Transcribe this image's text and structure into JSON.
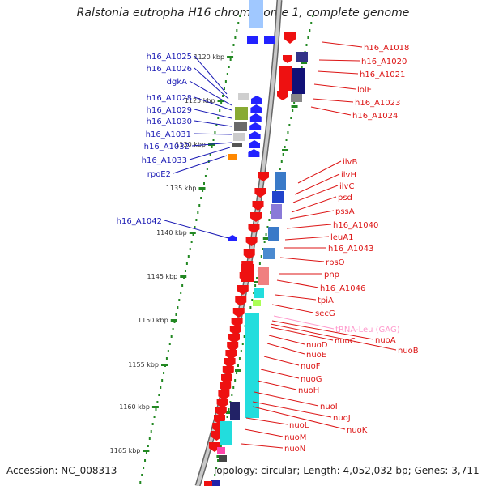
{
  "title": "Ralstonia eutropha H16 chromosome 1, complete genome",
  "accession": "Accession: NC_008313",
  "topology": "Topology: circular; Length: 4,052,032 bp; Genes: 3,711",
  "colors": {
    "forward_label": "#1a1ab4",
    "reverse_label": "#dc1414",
    "trna_label": "#ff99cc",
    "backbone": "#888888",
    "tick": "#228822"
  },
  "kbp_labels": [
    "1120 kbp",
    "1125 kbp",
    "1130 kbp",
    "1135 kbp",
    "1140 kbp",
    "1145 kbp",
    "1150 kbp",
    "1155 kbp",
    "1160 kbp",
    "1165 kbp"
  ],
  "left_genes": [
    "h16_A1025",
    "h16_A1026",
    "dgkA",
    "h16_A1028",
    "h16_A1029",
    "h16_A1030",
    "h16_A1031",
    "h16_A1032",
    "h16_A1033",
    "rpoE2",
    "h16_A1042"
  ],
  "right_genes": [
    "h16_A1018",
    "h16_A1020",
    "h16_A1021",
    "lolE",
    "h16_A1023",
    "h16_A1024",
    "ilvB",
    "ilvH",
    "ilvC",
    "psd",
    "pssA",
    "h16_A1040",
    "leuA1",
    "h16_A1043",
    "rpsO",
    "pnp",
    "h16_A1046",
    "tpiA",
    "secG",
    "tRNA-Leu (GAG)",
    "nuoA",
    "nuoB",
    "nuoC",
    "nuoD",
    "nuoE",
    "nuoF",
    "nuoG",
    "nuoH",
    "nuoI",
    "nuoJ",
    "nuoK",
    "nuoL",
    "nuoM",
    "nuoN"
  ]
}
